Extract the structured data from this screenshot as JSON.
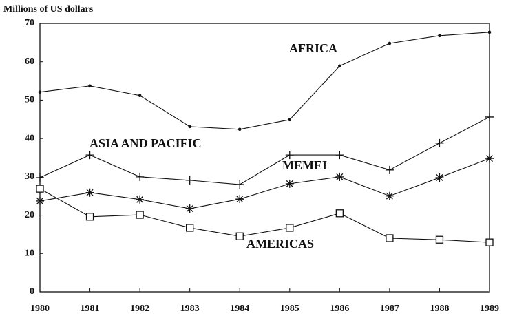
{
  "chart_data": {
    "type": "line",
    "y_label": "Millions of US dollars",
    "categories": [
      "1980",
      "1981",
      "1982",
      "1983",
      "1984",
      "1985",
      "1986",
      "1987",
      "1988",
      "1989"
    ],
    "series": [
      {
        "name": "AFRICA",
        "color": "#111111",
        "marker": "dot",
        "values": [
          52.1,
          53.7,
          51.2,
          43.1,
          42.4,
          44.9,
          58.9,
          64.8,
          66.8,
          67.7
        ]
      },
      {
        "name": "ASIA AND PACIFIC",
        "color": "#111111",
        "marker": "plus",
        "values": [
          29.8,
          35.7,
          30,
          29.1,
          28,
          35.7,
          35.7,
          31.8,
          38.8,
          45.6
        ]
      },
      {
        "name": "MEMEI",
        "color": "#111111",
        "marker": "asterisk",
        "values": [
          23.7,
          25.9,
          24.1,
          21.7,
          24.2,
          28.2,
          30,
          25,
          29.8,
          34.8
        ]
      },
      {
        "name": "AMERICAS",
        "color": "#111111",
        "marker": "square",
        "values": [
          26.9,
          19.6,
          20.1,
          16.7,
          14.5,
          16.7,
          20.5,
          14,
          13.6,
          12.9
        ]
      }
    ],
    "ylim": [
      0,
      70
    ],
    "yticks": [
      0,
      10,
      20,
      30,
      40,
      50,
      60,
      70
    ],
    "grid": false
  }
}
